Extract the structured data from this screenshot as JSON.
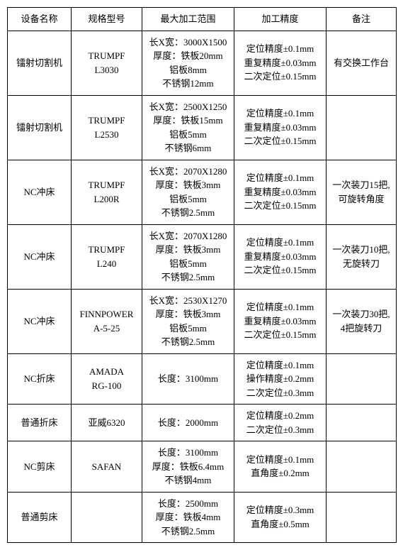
{
  "headers": [
    "设备名称",
    "规格型号",
    "最大加工范围",
    "加工精度",
    "备注"
  ],
  "rows": [
    {
      "name": "镭射切割机",
      "model": "TRUMPF\nL3030",
      "range": "长X宽：3000X1500\n厚度：铁板20mm\n铝板8mm\n不锈钢12mm",
      "precision": "定位精度±0.1mm\n重复精度±0.03mm\n二次定位±0.15mm",
      "note": "有交换工作台"
    },
    {
      "name": "镭射切割机",
      "model": "TRUMPF\nL2530",
      "range": "长X宽：2500X1250\n厚度：铁板15mm\n铝板5mm\n不锈钢6mm",
      "precision": "定位精度±0.1mm\n重复精度±0.03mm\n二次定位±0.15mm",
      "note": ""
    },
    {
      "name": "NC冲床",
      "model": "TRUMPF\nL200R",
      "range": "长X宽：2070X1280\n厚度：铁板3mm\n铝板5mm\n不锈钢2.5mm",
      "precision": "定位精度±0.1mm\n重复精度±0.03mm\n二次定位±0.15mm",
      "note": "一次装刀15把,\n可旋转角度"
    },
    {
      "name": "NC冲床",
      "model": "TRUMPF\nL240",
      "range": "长X宽：2070X1280\n厚度：铁板3mm\n铝板5mm\n不锈钢2.5mm",
      "precision": "定位精度±0.1mm\n重复精度±0.03mm\n二次定位±0.15mm",
      "note": "一次装刀10把,\n无旋转刀"
    },
    {
      "name": "NC冲床",
      "model": "FINNPOWER\nA-5-25",
      "range": "长X宽：2530X1270\n厚度：铁板3mm\n铝板5mm\n不锈钢2.5mm",
      "precision": "定位精度±0.1mm\n重复精度±0.03mm\n二次定位±0.15mm",
      "note": "一次装刀30把,\n4把旋转刀"
    },
    {
      "name": "NC折床",
      "model": "AMADA\nRG-100",
      "range": "长度：3100mm",
      "precision": "定位精度±0.1mm\n操作精度±0.2mm\n二次定位±0.3mm",
      "note": ""
    },
    {
      "name": "普通折床",
      "model": "亚威6320",
      "range": "长度：2000mm",
      "precision": "定位精度±0.2mm\n二次定位±0.3mm",
      "note": ""
    },
    {
      "name": "NC剪床",
      "model": "SAFAN",
      "range": "长度：3100mm\n厚度：铁板6.4mm\n不锈钢4mm",
      "precision": "定位精度±0.1mm\n直角度±0.2mm",
      "note": ""
    },
    {
      "name": "普通剪床",
      "model": "",
      "range": "长度：2500mm\n厚度：铁板4mm\n不锈钢2.5mm",
      "precision": "定位精度±0.3mm\n直角度±0.5mm",
      "note": ""
    }
  ]
}
